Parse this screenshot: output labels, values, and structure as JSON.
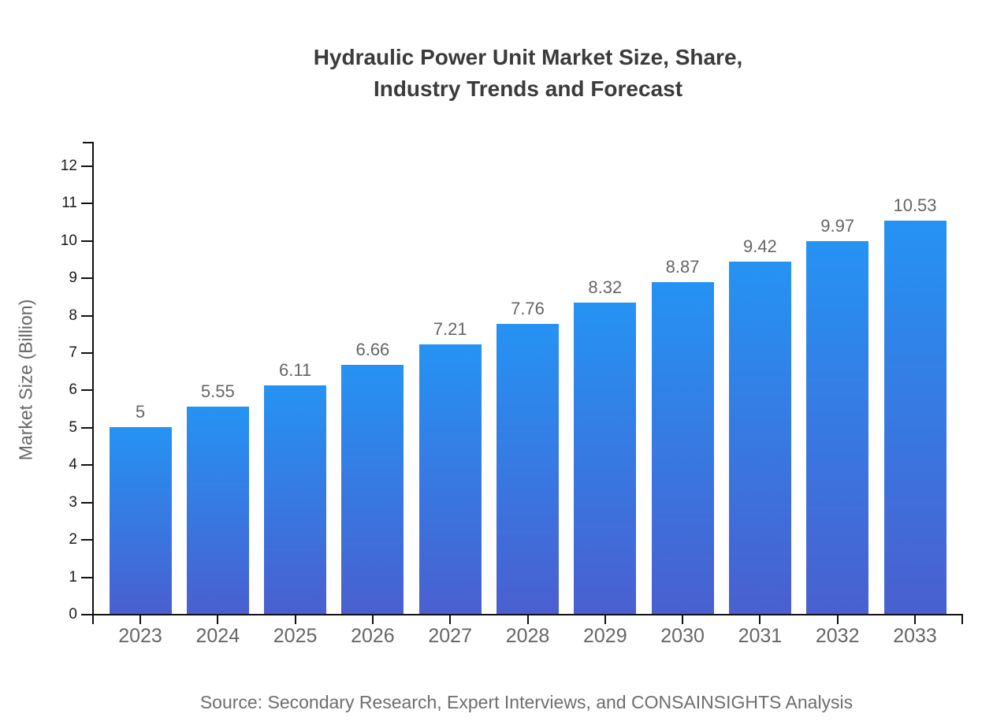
{
  "title": {
    "line1": "Hydraulic Power Unit Market Size, Share,",
    "line2": "Industry Trends and Forecast"
  },
  "source": "Source: Secondary Research, Expert Interviews, and CONSAINSIGHTS Analysis",
  "chart_data": {
    "type": "bar",
    "title": "Hydraulic Power Unit Market Size, Share, Industry Trends and Forecast",
    "xlabel": "",
    "ylabel": "Market Size (Billion)",
    "categories": [
      "2023",
      "2024",
      "2025",
      "2026",
      "2027",
      "2028",
      "2029",
      "2030",
      "2031",
      "2032",
      "2033"
    ],
    "values": [
      5,
      5.55,
      6.11,
      6.66,
      7.21,
      7.76,
      8.32,
      8.87,
      9.42,
      9.97,
      10.53
    ],
    "value_labels": [
      "5",
      "5.55",
      "6.11",
      "6.66",
      "7.21",
      "7.76",
      "8.32",
      "8.87",
      "9.42",
      "9.97",
      "10.53"
    ],
    "ylim": [
      0,
      12
    ],
    "yticks": [
      0,
      1,
      2,
      3,
      4,
      5,
      6,
      7,
      8,
      9,
      10,
      11,
      12
    ],
    "grid": false,
    "legend_position": "none",
    "colors": {
      "bar_gradient_top": "#2593f3",
      "bar_gradient_bottom": "#4a5fd0",
      "axis": "#111111",
      "ytick_label": "#1a1a1a",
      "category_label": "#666666",
      "value_label": "#666666",
      "title": "#3b3b3b",
      "source": "#6e6e6e"
    }
  }
}
